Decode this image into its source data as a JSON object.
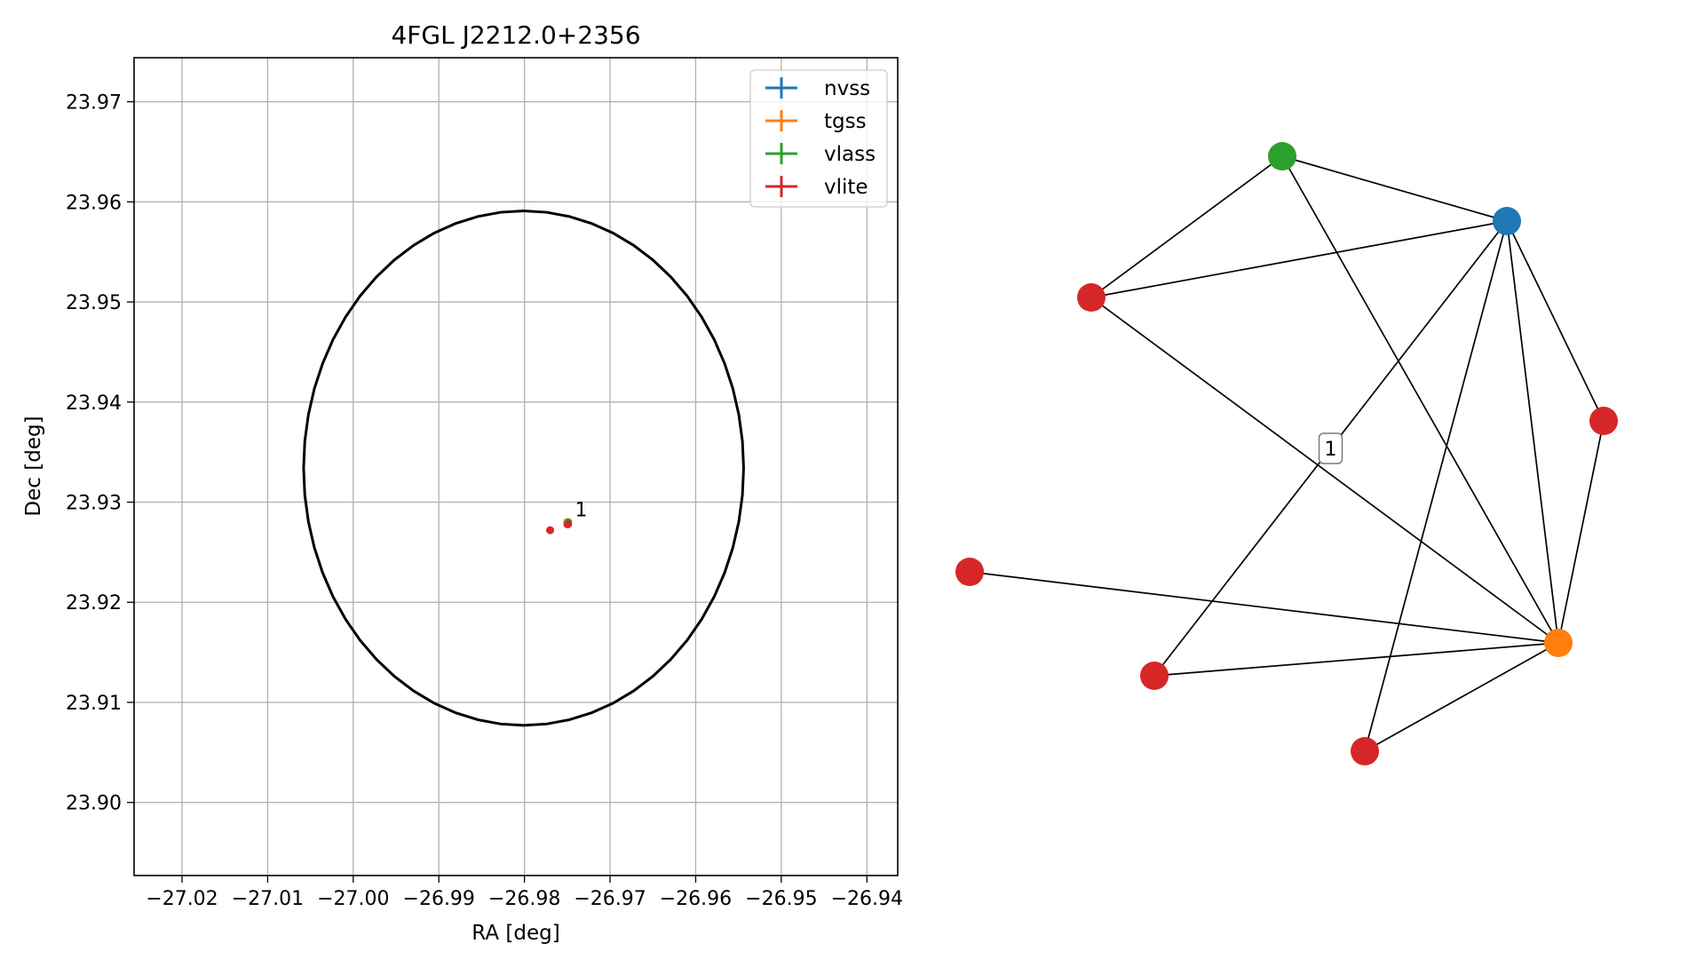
{
  "chart_data": [
    {
      "type": "scatter",
      "title": "4FGL J2212.0+2356",
      "xlabel": "RA [deg]",
      "ylabel": "Dec [deg]",
      "xlim": [
        -27.0256,
        -26.9364
      ],
      "ylim": [
        23.8927,
        23.9744
      ],
      "xticks": [
        -27.02,
        -27.01,
        -27.0,
        -26.99,
        -26.98,
        -26.97,
        -26.96,
        -26.95,
        -26.94
      ],
      "xtick_labels": [
        "−27.02",
        "−27.01",
        "−27.00",
        "−26.99",
        "−26.98",
        "−26.97",
        "−26.96",
        "−26.95",
        "−26.94"
      ],
      "yticks": [
        23.9,
        23.91,
        23.92,
        23.93,
        23.94,
        23.95,
        23.96,
        23.97
      ],
      "ytick_labels": [
        "23.90",
        "23.91",
        "23.92",
        "23.93",
        "23.94",
        "23.95",
        "23.96",
        "23.97"
      ],
      "grid": true,
      "legend_position": "top-right",
      "legend": [
        {
          "label": "nvss",
          "color": "#1f77b4"
        },
        {
          "label": "tgss",
          "color": "#ff7f0e"
        },
        {
          "label": "vlass",
          "color": "#2ca02c"
        },
        {
          "label": "vlite",
          "color": "#d62728"
        }
      ],
      "circle": {
        "center_ra": -26.9801,
        "center_dec": 23.9334,
        "radius_deg": 0.0257,
        "color": "#000000"
      },
      "points": [
        {
          "survey": "vlite",
          "ra": -26.977,
          "dec": 23.9272,
          "color": "#d62728"
        },
        {
          "survey": "vlite",
          "ra": -26.975,
          "dec": 23.9278,
          "color": "#d62728"
        },
        {
          "survey": "nvss",
          "ra": -26.975,
          "dec": 23.9279,
          "color": "#1f77b4"
        },
        {
          "survey": "tgss",
          "ra": -26.975,
          "dec": 23.928,
          "color": "#ff7f0e"
        },
        {
          "survey": "vlass",
          "ra": -26.9749,
          "dec": 23.928,
          "color": "#2ca02c"
        },
        {
          "survey": "vlite",
          "ra": -26.9749,
          "dec": 23.9278,
          "color": "#d62728"
        }
      ],
      "annotations": [
        {
          "text": "1",
          "ra": -26.9741,
          "dec": 23.9286
        }
      ]
    },
    {
      "type": "network",
      "nodes": [
        {
          "id": "vlass",
          "color": "#2ca02c"
        },
        {
          "id": "nvss",
          "color": "#1f77b4"
        },
        {
          "id": "vlite_a",
          "color": "#d62728"
        },
        {
          "id": "vlite_b",
          "color": "#d62728"
        },
        {
          "id": "vlite_c",
          "color": "#d62728"
        },
        {
          "id": "vlite_d",
          "color": "#d62728"
        },
        {
          "id": "vlite_e",
          "color": "#d62728"
        },
        {
          "id": "tgss",
          "color": "#ff7f0e"
        }
      ],
      "edges": [
        [
          "vlass",
          "nvss"
        ],
        [
          "vlass",
          "vlite_a"
        ],
        [
          "vlass",
          "tgss"
        ],
        [
          "nvss",
          "vlite_a"
        ],
        [
          "nvss",
          "vlite_b"
        ],
        [
          "nvss",
          "vlite_d"
        ],
        [
          "nvss",
          "vlite_e"
        ],
        [
          "nvss",
          "tgss"
        ],
        [
          "vlite_a",
          "tgss"
        ],
        [
          "vlite_b",
          "tgss"
        ],
        [
          "vlite_c",
          "tgss"
        ],
        [
          "vlite_d",
          "tgss"
        ],
        [
          "vlite_e",
          "tgss"
        ]
      ],
      "edge_labels": [
        {
          "text": "1"
        }
      ]
    }
  ]
}
